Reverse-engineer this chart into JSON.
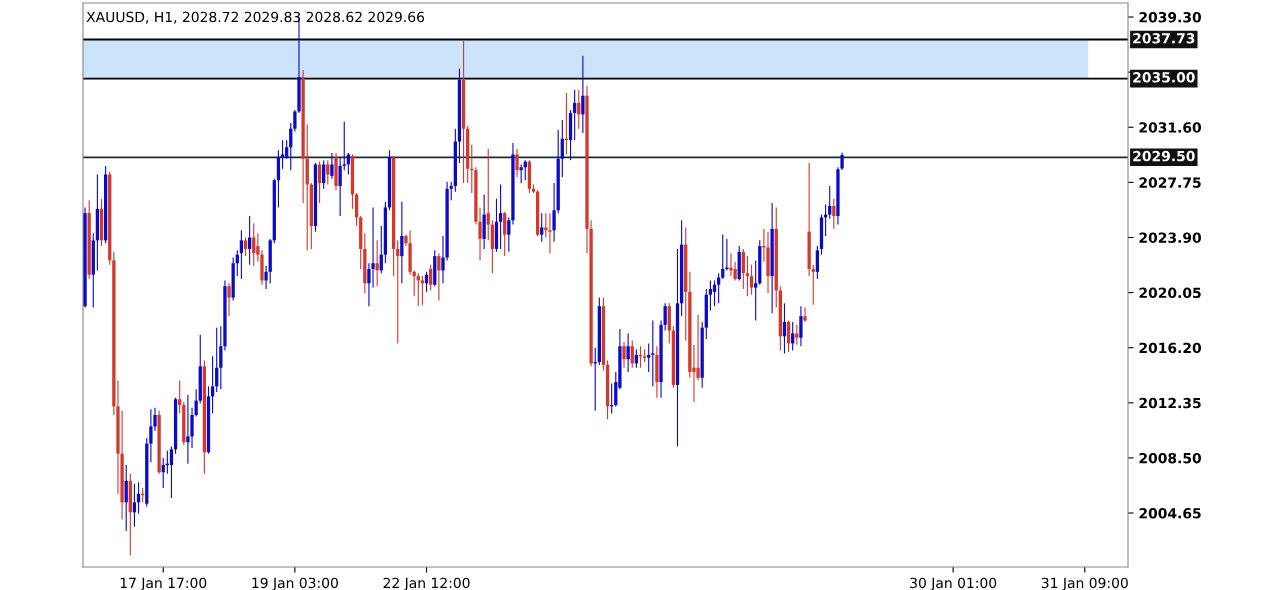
{
  "chart_data": {
    "type": "candlestick",
    "title": "XAUUSD, H1, 2028.72 2029.83 2028.62 2029.66",
    "colors": [
      "#0a0ac8",
      "#d2392b",
      "#0a0ac8",
      "#0a0ac8",
      "#d2392b",
      "#0a0ac8",
      "#d2392b",
      "#d2392b",
      "#d2392b",
      "#d2392b",
      "#0a0ac8",
      "#d2392b",
      "#0a0ac8",
      "#0a0ac8",
      "#d2392b",
      "#0a0ac8",
      "#0a0ac8",
      "#0a0ac8",
      "#d2392b",
      "#0a0ac8",
      "#0a0ac8",
      "#0a0ac8",
      "#0a0ac8",
      "#d2392b",
      "#d2392b",
      "#0a0ac8",
      "#0a0ac8",
      "#0a0ac8",
      "#0a0ac8",
      "#d2392b",
      "#0a0ac8",
      "#0a0ac8",
      "#0a0ac8",
      "#0a0ac8",
      "#0a0ac8",
      "#d2392b",
      "#0a0ac8",
      "#0a0ac8",
      "#0a0ac8",
      "#d2392b",
      "#0a0ac8",
      "#d2392b",
      "#d2392b",
      "#d2392b",
      "#0a0ac8",
      "#0a0ac8",
      "#0a0ac8",
      "#0a0ac8",
      "#0a0ac8",
      "#0a0ac8",
      "#0a0ac8",
      "#0a0ac8",
      "#0a0ac8",
      "#d2392b",
      "#d2392b",
      "#d2392b",
      "#0a0ac8",
      "#d2392b",
      "#0a0ac8",
      "#d2392b",
      "#0a0ac8",
      "#d2392b",
      "#0a0ac8",
      "#0a0ac8",
      "#0a0ac8",
      "#d2392b",
      "#d2392b",
      "#d2392b",
      "#d2392b",
      "#0a0ac8",
      "#0a0ac8",
      "#d2392b",
      "#0a0ac8",
      "#0a0ac8",
      "#0a0ac8",
      "#d2392b",
      "#d2392b",
      "#0a0ac8",
      "#d2392b",
      "#d2392b",
      "#d2392b",
      "#d2392b",
      "#d2392b",
      "#0a0ac8",
      "#d2392b",
      "#0a0ac8",
      "#d2392b",
      "#0a0ac8",
      "#0a0ac8",
      "#0a0ac8",
      "#0a0ac8",
      "#0a0ac8",
      "#d2392b",
      "#d2392b",
      "#d2392b",
      "#d2392b",
      "#d2392b",
      "#0a0ac8",
      "#d2392b",
      "#d2392b",
      "#0a0ac8",
      "#0a0ac8",
      "#d2392b",
      "#0a0ac8",
      "#0a0ac8",
      "#d2392b",
      "#0a0ac8",
      "#0a0ac8",
      "#d2392b",
      "#d2392b",
      "#d2392b",
      "#0a0ac8",
      "#d2392b",
      "#d2392b",
      "#0a0ac8",
      "#0a0ac8",
      "#0a0ac8",
      "#d2392b",
      "#0a0ac8",
      "#0a0ac8",
      "#d2392b",
      "#0a0ac8",
      "#d2392b",
      "#d2392b",
      "#0a0ac8",
      "#0a0ac8",
      "#d2392b",
      "#d2392b",
      "#0a0ac8",
      "#0a0ac8",
      "#0a0ac8",
      "#d2392b",
      "#0a0ac8",
      "#d2392b",
      "#0a0ac8",
      "#d2392b",
      "#d2392b",
      "#0a0ac8",
      "#0a0ac8",
      "#d2392b",
      "#0a0ac8",
      "#0a0ac8",
      "#d2392b",
      "#d2392b",
      "#0a0ac8",
      "#0a0ac8",
      "#d2392b",
      "#d2392b",
      "#d2392b",
      "#d2392b",
      "#0a0ac8",
      "#0a0ac8",
      "#0a0ac8",
      "#0a0ac8",
      "#0a0ac8",
      "#0a0ac8",
      "#0a0ac8",
      "#d2392b",
      "#d2392b",
      "#0a0ac8",
      "#d2392b",
      "#d2392b",
      "#d2392b",
      "#0a0ac8",
      "#0a0ac8",
      "#d2392b",
      "#d2392b",
      "#0a0ac8",
      "#d2392b",
      "#d2392b",
      "#0a0ac8",
      "#d2392b",
      "#0a0ac8",
      "#d2392b",
      "#0a0ac8",
      "#d2392b",
      "#d2392b",
      "#d2392b",
      "#0a0ac8",
      "#0a0ac8",
      "#0a0ac8",
      "#0a0ac8",
      "#d2392b",
      "#0a0ac8",
      "#0a0ac8",
      null,
      null,
      null,
      null,
      null,
      null,
      null,
      null,
      null,
      null,
      null,
      null,
      null,
      null,
      null,
      null,
      null,
      null,
      null,
      null,
      null,
      null,
      null,
      null,
      null,
      null,
      null,
      null,
      null,
      null,
      null,
      null,
      null,
      null,
      null,
      null,
      null,
      null,
      null,
      null,
      null,
      null,
      null,
      null,
      null,
      null,
      null,
      null,
      null,
      null,
      null,
      null,
      null,
      null,
      null,
      null,
      null,
      null,
      null,
      null,
      null,
      null,
      null,
      null,
      null,
      null,
      null,
      null,
      null
    ],
    "categories": [
      null,
      null,
      null,
      null,
      null,
      null,
      null,
      null,
      null,
      null,
      null,
      null,
      null,
      null,
      null,
      null,
      null,
      null,
      null,
      "17 Jan 17:00",
      null,
      null,
      null,
      null,
      null,
      null,
      null,
      null,
      null,
      null,
      null,
      null,
      null,
      null,
      null,
      null,
      null,
      null,
      null,
      null,
      null,
      null,
      null,
      null,
      null,
      null,
      null,
      null,
      null,
      null,
      null,
      "19 Jan 03:00",
      null,
      null,
      null,
      null,
      null,
      null,
      null,
      null,
      null,
      null,
      null,
      null,
      null,
      null,
      null,
      null,
      null,
      null,
      null,
      null,
      null,
      null,
      null,
      null,
      null,
      null,
      null,
      null,
      null,
      null,
      null,
      "22 Jan 12:00",
      null,
      null,
      null,
      null,
      null,
      null,
      null,
      null,
      null,
      null,
      null,
      null,
      null,
      null,
      null,
      null,
      null,
      null,
      null,
      null,
      null,
      null,
      null,
      null,
      null,
      null,
      null,
      null,
      null,
      null,
      null,
      null,
      null,
      null,
      null,
      null,
      null,
      null,
      null,
      null,
      null,
      null,
      null,
      null,
      null,
      null,
      null,
      null,
      null,
      null,
      null,
      null,
      null,
      null,
      null,
      null,
      null,
      null,
      null,
      null,
      null,
      null,
      null,
      null,
      null,
      null,
      null,
      null,
      null,
      null,
      null,
      null,
      null,
      null,
      null,
      null,
      null,
      null,
      null,
      null,
      null,
      null,
      null,
      null,
      null,
      null,
      null,
      null,
      null,
      null,
      null,
      null,
      null,
      null,
      null,
      null,
      null,
      null,
      null,
      null,
      null,
      null,
      null,
      null,
      null,
      null,
      null,
      null,
      null,
      null,
      null,
      null,
      null,
      null,
      null,
      null,
      null,
      null,
      null,
      null,
      null,
      null,
      null,
      null,
      null,
      null,
      null,
      "30 Jan 01:00",
      null,
      null,
      null,
      null,
      null,
      null,
      null,
      null,
      null,
      null,
      null,
      null,
      null,
      null,
      null,
      null,
      null,
      null,
      null,
      null,
      null,
      null,
      null,
      null,
      null,
      null,
      null,
      null,
      null,
      null,
      null,
      "31 Jan 09:00",
      null,
      null,
      null,
      null,
      null,
      null,
      null,
      null,
      null,
      null
    ],
    "ohlc": [
      [
        2019.1,
        2026.0,
        2019.0,
        2025.6
      ],
      [
        2025.6,
        2026.5,
        2021.0,
        2021.3
      ],
      [
        2021.3,
        2024.2,
        2019.0,
        2023.7
      ],
      [
        2023.7,
        2028.3,
        2021.6,
        2025.9
      ],
      [
        2025.9,
        2026.6,
        2023.3,
        2023.7
      ],
      [
        2023.7,
        2028.9,
        2023.5,
        2028.3
      ],
      [
        2028.3,
        2028.5,
        2022.0,
        2022.3
      ],
      [
        2022.3,
        2022.9,
        2011.5,
        2012.1
      ],
      [
        2012.1,
        2013.9,
        2006.0,
        2008.8
      ],
      [
        2008.8,
        2011.8,
        2004.2,
        2005.4
      ],
      [
        2005.4,
        2008.0,
        2003.4,
        2006.9
      ],
      [
        2006.9,
        2007.4,
        2001.7,
        2004.7
      ],
      [
        2004.7,
        2006.7,
        2003.7,
        2005.4
      ],
      [
        2005.4,
        2006.8,
        2004.6,
        2006.0
      ],
      [
        2006.0,
        2006.4,
        2005.4,
        2005.9
      ],
      [
        2005.3,
        2009.9,
        2005.1,
        2009.5
      ],
      [
        2009.5,
        2011.9,
        2008.2,
        2010.7
      ],
      [
        2010.7,
        2012.0,
        2010.4,
        2011.5
      ],
      [
        2011.5,
        2011.8,
        2007.4,
        2007.5
      ],
      [
        2007.5,
        2008.5,
        2006.4,
        2008.0
      ],
      [
        2008.0,
        2009.0,
        2007.4,
        2008.1
      ],
      [
        2008.0,
        2009.3,
        2005.7,
        2009.1
      ],
      [
        2009.1,
        2012.7,
        2008.8,
        2012.6
      ],
      [
        2012.6,
        2013.9,
        2011.6,
        2012.2
      ],
      [
        2012.2,
        2012.4,
        2009.4,
        2009.6
      ],
      [
        2009.6,
        2012.9,
        2008.1,
        2010.0
      ],
      [
        2010.0,
        2012.0,
        2009.2,
        2011.5
      ],
      [
        2011.5,
        2013.3,
        2011.4,
        2012.5
      ],
      [
        2012.5,
        2017.1,
        2012.3,
        2014.9
      ],
      [
        2014.9,
        2015.3,
        2007.4,
        2008.9
      ],
      [
        2008.9,
        2013.5,
        2008.8,
        2012.8
      ],
      [
        2012.8,
        2015.6,
        2011.6,
        2013.5
      ],
      [
        2013.5,
        2017.6,
        2013.1,
        2014.8
      ],
      [
        2014.8,
        2017.7,
        2013.3,
        2016.3
      ],
      [
        2016.3,
        2020.9,
        2016.0,
        2020.5
      ],
      [
        2020.5,
        2020.7,
        2018.4,
        2019.7
      ],
      [
        2019.7,
        2022.5,
        2019.5,
        2022.1
      ],
      [
        2022.1,
        2023.0,
        2021.2,
        2022.7
      ],
      [
        2022.8,
        2024.4,
        2021.0,
        2023.7
      ],
      [
        2023.7,
        2023.9,
        2022.6,
        2023.1
      ],
      [
        2023.1,
        2025.4,
        2022.0,
        2023.9
      ],
      [
        2023.9,
        2024.9,
        2021.9,
        2022.8
      ],
      [
        2023.3,
        2024.2,
        2022.2,
        2022.7
      ],
      [
        2022.7,
        2023.0,
        2020.6,
        2020.9
      ],
      [
        2020.9,
        2021.9,
        2020.3,
        2021.5
      ],
      [
        2021.5,
        2023.8,
        2020.7,
        2023.7
      ],
      [
        2023.7,
        2028.0,
        2023.5,
        2027.9
      ],
      [
        2027.9,
        2030.0,
        2026.0,
        2029.5
      ],
      [
        2029.5,
        2030.7,
        2028.7,
        2029.7
      ],
      [
        2029.5,
        2030.7,
        2029.4,
        2030.2
      ],
      [
        2030.2,
        2031.9,
        2028.6,
        2031.5
      ],
      [
        2031.5,
        2032.8,
        2031.3,
        2032.7
      ],
      [
        2032.7,
        2039.2,
        2032.6,
        2035.1
      ],
      [
        2035.1,
        2035.6,
        2026.3,
        2029.4
      ],
      [
        2029.4,
        2031.8,
        2023.0,
        2027.6
      ],
      [
        2027.6,
        2027.7,
        2023.1,
        2024.7
      ],
      [
        2024.7,
        2029.1,
        2024.3,
        2029.0
      ],
      [
        2029.0,
        2029.2,
        2026.3,
        2027.7
      ],
      [
        2027.7,
        2029.3,
        2027.3,
        2029.0
      ],
      [
        2029.0,
        2029.3,
        2027.6,
        2028.3
      ],
      [
        2028.2,
        2029.8,
        2028.0,
        2029.0
      ],
      [
        2029.5,
        2029.8,
        2027.2,
        2027.5
      ],
      [
        2027.5,
        2029.5,
        2025.4,
        2028.9
      ],
      [
        2028.9,
        2032.0,
        2028.6,
        2029.0
      ],
      [
        2029.0,
        2029.8,
        2028.3,
        2029.7
      ],
      [
        2029.6,
        2029.7,
        2025.9,
        2026.9
      ],
      [
        2026.9,
        2027.0,
        2024.7,
        2025.3
      ],
      [
        2025.3,
        2025.4,
        2021.7,
        2023.1
      ],
      [
        2023.1,
        2024.2,
        2020.0,
        2020.7
      ],
      [
        2020.7,
        2022.1,
        2019.1,
        2021.7
      ],
      [
        2021.7,
        2026.0,
        2020.4,
        2022.1
      ],
      [
        2022.1,
        2023.7,
        2020.5,
        2021.6
      ],
      [
        2021.6,
        2024.7,
        2021.4,
        2022.7
      ],
      [
        2022.7,
        2026.4,
        2022.1,
        2026.0
      ],
      [
        2026.0,
        2030.0,
        2025.8,
        2029.5
      ],
      [
        2029.5,
        2029.6,
        2021.2,
        2023.1
      ],
      [
        2023.1,
        2023.7,
        2016.5,
        2022.6
      ],
      [
        2022.6,
        2026.4,
        2020.7,
        2024.0
      ],
      [
        2024.0,
        2024.1,
        2023.3,
        2023.5
      ],
      [
        2023.5,
        2024.4,
        2021.3,
        2021.5
      ],
      [
        2021.5,
        2021.6,
        2019.8,
        2021.2
      ],
      [
        2021.2,
        2021.4,
        2019.1,
        2020.9
      ],
      [
        2020.9,
        2021.2,
        2019.2,
        2020.7
      ],
      [
        2020.7,
        2021.5,
        2020.1,
        2021.3
      ],
      [
        2021.7,
        2022.0,
        2020.2,
        2020.6
      ],
      [
        2020.6,
        2023.0,
        2020.5,
        2022.6
      ],
      [
        2022.6,
        2022.8,
        2019.5,
        2021.6
      ],
      [
        2021.6,
        2024.0,
        2020.7,
        2022.5
      ],
      [
        2022.5,
        2027.8,
        2022.3,
        2027.3
      ],
      [
        2027.3,
        2027.8,
        2026.5,
        2027.5
      ],
      [
        2027.5,
        2031.5,
        2027.1,
        2030.6
      ],
      [
        2030.6,
        2035.7,
        2029.1,
        2034.9
      ],
      [
        2034.9,
        2037.7,
        2027.7,
        2031.5
      ],
      [
        2031.5,
        2031.7,
        2027.7,
        2028.7
      ],
      [
        2028.7,
        2030.4,
        2027.0,
        2028.6
      ],
      [
        2028.6,
        2028.8,
        2024.8,
        2025.0
      ],
      [
        2025.0,
        2026.0,
        2022.3,
        2023.8
      ],
      [
        2023.8,
        2026.9,
        2023.1,
        2025.5
      ],
      [
        2025.6,
        2030.1,
        2023.7,
        2024.8
      ],
      [
        2024.8,
        2025.1,
        2021.4,
        2023.1
      ],
      [
        2023.1,
        2026.6,
        2022.9,
        2025.0
      ],
      [
        2025.0,
        2027.6,
        2023.1,
        2025.6
      ],
      [
        2025.6,
        2025.7,
        2022.6,
        2024.1
      ],
      [
        2024.1,
        2025.3,
        2022.9,
        2025.1
      ],
      [
        2025.1,
        2030.5,
        2024.8,
        2029.7
      ],
      [
        2029.7,
        2030.1,
        2028.1,
        2028.6
      ],
      [
        2028.6,
        2029.0,
        2027.7,
        2028.8
      ],
      [
        2028.8,
        2029.3,
        2027.9,
        2029.2
      ],
      [
        2029.2,
        2029.3,
        2027.0,
        2027.3
      ],
      [
        2027.3,
        2027.6,
        2027.0,
        2027.1
      ],
      [
        2027.1,
        2027.2,
        2024.0,
        2024.1
      ],
      [
        2024.1,
        2025.6,
        2023.6,
        2024.6
      ],
      [
        2024.6,
        2025.6,
        2023.9,
        2024.4
      ],
      [
        2024.4,
        2025.6,
        2022.8,
        2024.3
      ],
      [
        2024.4,
        2027.7,
        2023.6,
        2025.8
      ],
      [
        2025.8,
        2031.4,
        2025.6,
        2029.4
      ],
      [
        2029.4,
        2032.1,
        2028.1,
        2030.8
      ],
      [
        2030.8,
        2034.0,
        2029.7,
        2030.7
      ],
      [
        2030.7,
        2032.8,
        2029.3,
        2032.6
      ],
      [
        2032.6,
        2034.2,
        2030.7,
        2033.3
      ],
      [
        2033.3,
        2034.2,
        2031.5,
        2032.5
      ],
      [
        2032.5,
        2036.6,
        2031.2,
        2033.8
      ],
      [
        2033.8,
        2034.5,
        2022.8,
        2024.5
      ],
      [
        2024.5,
        2025.1,
        2014.9,
        2015.1
      ],
      [
        2015.1,
        2016.2,
        2011.8,
        2015.2
      ],
      [
        2015.2,
        2019.7,
        2015.0,
        2019.1
      ],
      [
        2019.1,
        2019.7,
        2014.6,
        2015.0
      ],
      [
        2015.0,
        2015.3,
        2011.2,
        2012.1
      ],
      [
        2012.1,
        2013.7,
        2011.6,
        2012.2
      ],
      [
        2012.2,
        2014.5,
        2012.1,
        2013.8
      ],
      [
        2013.4,
        2017.5,
        2013.3,
        2016.3
      ],
      [
        2016.3,
        2016.6,
        2014.8,
        2015.4
      ],
      [
        2015.4,
        2017.2,
        2014.5,
        2016.3
      ],
      [
        2016.3,
        2016.7,
        2014.8,
        2015.1
      ],
      [
        2015.1,
        2016.1,
        2014.8,
        2015.7
      ],
      [
        2015.7,
        2016.3,
        2014.8,
        2015.6
      ],
      [
        2015.6,
        2016.1,
        2015.2,
        2015.5
      ],
      [
        2015.5,
        2016.5,
        2014.5,
        2015.7
      ],
      [
        2015.7,
        2018.1,
        2013.5,
        2015.8
      ],
      [
        2015.7,
        2016.3,
        2012.7,
        2013.8
      ],
      [
        2013.8,
        2018.1,
        2012.7,
        2017.8
      ],
      [
        2017.8,
        2019.3,
        2017.4,
        2019.1
      ],
      [
        2019.1,
        2019.3,
        2016.5,
        2017.4
      ],
      [
        2017.4,
        2017.7,
        2013.4,
        2013.6
      ],
      [
        2013.6,
        2023.1,
        2009.3,
        2019.3
      ],
      [
        2019.3,
        2025.1,
        2018.4,
        2023.4
      ],
      [
        2023.4,
        2024.6,
        2016.7,
        2020.1
      ],
      [
        2020.1,
        2021.5,
        2014.1,
        2014.5
      ],
      [
        2014.8,
        2016.4,
        2012.4,
        2014.5
      ],
      [
        2014.8,
        2018.5,
        2013.9,
        2014.1
      ],
      [
        2014.1,
        2018.0,
        2013.4,
        2017.6
      ],
      [
        2017.6,
        2020.3,
        2016.8,
        2019.9
      ],
      [
        2019.9,
        2020.9,
        2018.8,
        2020.3
      ],
      [
        2020.1,
        2020.9,
        2019.1,
        2020.6
      ],
      [
        2020.6,
        2021.4,
        2019.3,
        2021.1
      ],
      [
        2021.1,
        2024.1,
        2021.0,
        2021.7
      ],
      [
        2021.7,
        2023.8,
        2021.6,
        2021.8
      ],
      [
        2021.8,
        2022.8,
        2021.2,
        2021.6
      ],
      [
        2021.7,
        2022.2,
        2020.9,
        2021.0
      ],
      [
        2021.0,
        2023.3,
        2020.9,
        2022.9
      ],
      [
        2022.9,
        2023.1,
        2020.3,
        2021.4
      ],
      [
        2021.4,
        2022.6,
        2019.8,
        2021.2
      ],
      [
        2021.2,
        2022.0,
        2019.9,
        2020.4
      ],
      [
        2020.4,
        2022.3,
        2018.1,
        2020.7
      ],
      [
        2020.7,
        2023.7,
        2020.6,
        2023.3
      ],
      [
        2023.3,
        2024.5,
        2022.2,
        2023.2
      ],
      [
        2023.2,
        2024.3,
        2020.0,
        2021.2
      ],
      [
        2021.2,
        2026.3,
        2018.6,
        2024.5
      ],
      [
        2024.5,
        2026.0,
        2019.0,
        2020.2
      ],
      [
        2020.2,
        2020.5,
        2016.0,
        2017.0
      ],
      [
        2017.0,
        2019.3,
        2015.8,
        2018.0
      ],
      [
        2018.0,
        2018.1,
        2015.9,
        2016.5
      ],
      [
        2016.5,
        2018.0,
        2016.0,
        2017.2
      ],
      [
        2017.2,
        2017.8,
        2016.4,
        2016.9
      ],
      [
        2016.9,
        2019.1,
        2016.3,
        2018.4
      ],
      [
        2018.4,
        2019.0,
        2018.0,
        2018.1
      ],
      [
        2024.3,
        2029.1,
        2021.2,
        2021.7
      ],
      [
        2021.7,
        2022.0,
        2019.2,
        2021.5
      ],
      [
        2021.5,
        2023.3,
        2021.0,
        2023.0
      ],
      [
        2023.1,
        2025.5,
        2022.7,
        2025.3
      ],
      [
        2025.3,
        2026.2,
        2024.0,
        2025.5
      ],
      [
        2025.5,
        2027.5,
        2025.2,
        2026.1
      ],
      [
        2026.1,
        2026.6,
        2024.5,
        2025.4
      ],
      [
        2025.4,
        2028.8,
        2024.8,
        2028.66
      ],
      [
        2028.72,
        2029.83,
        2028.62,
        2029.66
      ],
      null,
      null,
      null,
      null,
      null,
      null,
      null,
      null,
      null,
      null,
      null,
      null,
      null,
      null,
      null,
      null,
      null,
      null,
      null,
      null,
      null,
      null,
      null,
      null,
      null,
      null,
      null,
      null,
      null,
      null,
      null,
      null,
      null,
      null,
      null,
      null,
      null,
      null,
      null,
      null,
      null,
      null,
      null,
      null,
      null,
      null,
      null,
      null,
      null,
      null,
      null,
      null,
      null,
      null,
      null,
      null,
      null,
      null,
      null,
      null,
      null,
      null,
      null,
      null,
      null,
      null,
      null,
      null,
      null
    ],
    "ylim": [
      2000.88,
      2040.28
    ],
    "yticks": [
      {
        "value": 2039.3,
        "label": "2039.30"
      },
      {
        "value": 2035.45,
        "label": null
      },
      {
        "value": 2031.6,
        "label": "2031.60"
      },
      {
        "value": 2027.75,
        "label": "2027.75"
      },
      {
        "value": 2023.9,
        "label": "2023.90"
      },
      {
        "value": 2020.05,
        "label": "2020.05"
      },
      {
        "value": 2016.2,
        "label": "2016.20"
      },
      {
        "value": 2012.35,
        "label": "2012.35"
      },
      {
        "value": 2008.5,
        "label": "2008.50"
      },
      {
        "value": 2004.65,
        "label": "2004.65"
      }
    ],
    "ref_lines": [
      {
        "axis": "y",
        "value": 2037.73,
        "label": "2037.73",
        "color": "#000000"
      },
      {
        "axis": "y",
        "value": 2035.0,
        "label": "2035.00",
        "color": "#000000"
      },
      {
        "axis": "y",
        "value": 2029.5,
        "label": "2029.50",
        "color": "#1c2a36"
      }
    ],
    "bands": [
      {
        "axis": "y",
        "from": 2035.0,
        "to": 2037.73,
        "color": "#cce4fb"
      }
    ]
  }
}
